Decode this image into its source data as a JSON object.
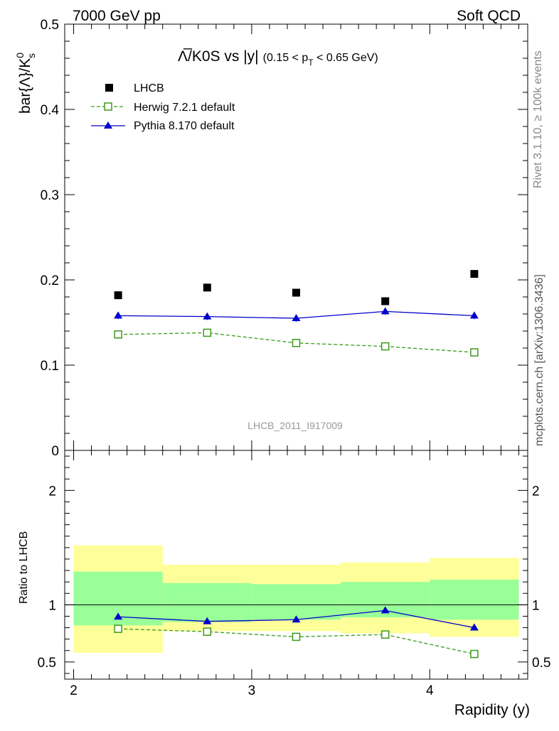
{
  "header": {
    "energy_label": "7000 GeV pp",
    "process_label": "Soft QCD"
  },
  "side": {
    "rivet_label": "Rivet 3.1.10, ≥ 100k events",
    "site_label": "mcplots.cern.ch [arXiv:1306.3436]"
  },
  "colors": {
    "data": "#000000",
    "herwig": "#3a9a1a",
    "pythia": "#0000cc",
    "band_inner": "#99ff99",
    "band_outer": "#ffff99"
  },
  "chart_data": {
    "type": "line",
    "title_main": "Λ̅/K0S vs |y|",
    "title_sub": "(0.15 < p_T < 0.65 GeV)",
    "title_sub_parts": {
      "pre": "(0.15 < p",
      "sub": "T",
      "post": " < 0.65 GeV)"
    },
    "analysis_label": "LHCB_2011_I917009",
    "xlabel": "Rapidity (y)",
    "ylabel": "bar{Λ}/K⁰s",
    "ylabel_parts": {
      "base": "bar{Λ}/K",
      "sup": "0",
      "sub": "s"
    },
    "ratio_ylabel": "Ratio to LHCB",
    "xlim": [
      1.95,
      4.55
    ],
    "ylim": [
      0,
      0.5
    ],
    "ratio_ylim": [
      0.35,
      2.35
    ],
    "x_ticks": [
      2,
      3,
      4
    ],
    "x_tick_labels": [
      "2",
      "3",
      "4"
    ],
    "y_ticks": [
      0,
      0.1,
      0.2,
      0.3,
      0.4,
      0.5
    ],
    "y_tick_labels": [
      "0",
      "0.1",
      "0.2",
      "0.3",
      "0.4",
      "0.5"
    ],
    "ratio_ticks": [
      0.5,
      1,
      2
    ],
    "ratio_tick_labels": [
      "0.5",
      "1",
      "2"
    ],
    "x": [
      2.25,
      2.75,
      3.25,
      3.75,
      4.25
    ],
    "bins": [
      [
        2.0,
        2.5
      ],
      [
        2.5,
        3.0
      ],
      [
        3.0,
        3.5
      ],
      [
        3.5,
        4.0
      ],
      [
        4.0,
        4.5
      ]
    ],
    "legend": [
      "LHCB",
      "Herwig 7.2.1 default",
      "Pythia 8.170 default"
    ],
    "series": [
      {
        "name": "LHCB",
        "marker": "square-filled",
        "values": [
          0.182,
          0.191,
          0.185,
          0.175,
          0.207
        ]
      },
      {
        "name": "Herwig 7.2.1 default",
        "marker": "square-open",
        "line": "dashed",
        "values": [
          0.136,
          0.138,
          0.126,
          0.122,
          0.115
        ],
        "errors": [
          0.002,
          0.002,
          0.002,
          0.002,
          0.002
        ]
      },
      {
        "name": "Pythia 8.170 default",
        "marker": "triangle-filled",
        "line": "solid",
        "values": [
          0.158,
          0.157,
          0.155,
          0.163,
          0.158
        ],
        "errors": [
          0.004,
          0.004,
          0.004,
          0.004,
          0.004
        ]
      }
    ],
    "ratio_series": [
      {
        "name": "Herwig 7.2.1 default",
        "values": [
          0.79,
          0.765,
          0.72,
          0.74,
          0.57
        ],
        "errors": [
          0.01,
          0.01,
          0.01,
          0.01,
          0.015
        ]
      },
      {
        "name": "Pythia 8.170 default",
        "values": [
          0.895,
          0.855,
          0.87,
          0.95,
          0.8
        ],
        "errors": [
          0.02,
          0.02,
          0.02,
          0.02,
          0.02
        ]
      }
    ],
    "ratio_bands": {
      "inner": [
        [
          0.82,
          1.29
        ],
        [
          0.85,
          1.19
        ],
        [
          0.87,
          1.18
        ],
        [
          0.89,
          1.2
        ],
        [
          0.87,
          1.22
        ]
      ],
      "outer": [
        [
          0.58,
          1.52
        ],
        [
          0.77,
          1.35
        ],
        [
          0.77,
          1.35
        ],
        [
          0.75,
          1.37
        ],
        [
          0.72,
          1.41
        ]
      ]
    }
  }
}
